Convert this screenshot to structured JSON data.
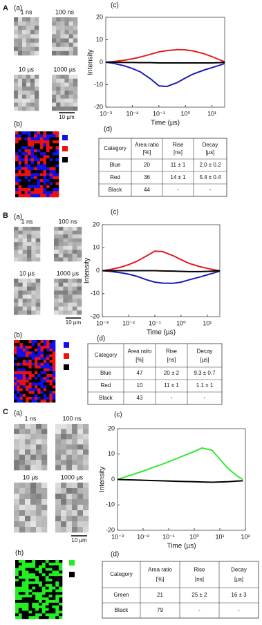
{
  "panels": [
    {
      "letter": "A",
      "images_label": "(a)",
      "frames": [
        "1 ns",
        "100 ns",
        "10 µs",
        "1000 µs"
      ],
      "scale_bar": "10 µm",
      "map_label": "(b)",
      "map_colors": [
        "#1010ee",
        "#ee1010",
        "#000000"
      ],
      "table_label": "(d)",
      "header": [
        "Category",
        "Area ratio",
        "Rise",
        "Decay"
      ],
      "units": [
        "[%]",
        "[ns]",
        "[µs]"
      ],
      "rows": [
        [
          "Blue",
          "20",
          "11 ± 1",
          "2.0 ± 0.2"
        ],
        [
          "Red",
          "36",
          "14 ± 1",
          "5.4 ± 0.4"
        ],
        [
          "Black",
          "44",
          "-",
          "-"
        ]
      ]
    },
    {
      "letter": "B",
      "images_label": "(a)",
      "frames": [
        "1 ns",
        "100 ns",
        "10 µs",
        "1000 µs"
      ],
      "scale_bar": "10 µm",
      "map_label": "(b)",
      "map_colors": [
        "#1010ee",
        "#ee1010",
        "#000000"
      ],
      "table_label": "(d)",
      "header": [
        "Category",
        "Area ratio",
        "Rise",
        "Decay"
      ],
      "units": [
        "[%]",
        "[ns]",
        "[µs]"
      ],
      "rows": [
        [
          "Blue",
          "47",
          "20 ± 2",
          "9.3 ± 0.7"
        ],
        [
          "Red",
          "10",
          "11 ± 1",
          "1.1 ± 1"
        ],
        [
          "Black",
          "43",
          "-",
          "-"
        ]
      ]
    },
    {
      "letter": "C",
      "images_label": "(a)",
      "frames": [
        "1 ns",
        "100 ns",
        "10 µs",
        "1000 µs"
      ],
      "scale_bar": "10 µm",
      "map_label": "(b)",
      "map_colors": [
        "#22ee22",
        "#000000"
      ],
      "table_label": "(d)",
      "header": [
        "Category",
        "Area ratio",
        "Rise",
        "Decay"
      ],
      "units": [
        "[%]",
        "[ns]",
        "[µs]"
      ],
      "rows": [
        [
          "Green",
          "21",
          "25 ± 2",
          "16 ± 3"
        ],
        [
          "Black",
          "79",
          "-",
          "-"
        ]
      ]
    }
  ],
  "chart_data": [
    {
      "type": "line",
      "label": "(c)",
      "xlabel": "Time (µs)",
      "ylabel": "Intensity",
      "xscale": "log",
      "xlim": [
        0.001,
        30
      ],
      "ylim": [
        -20,
        20
      ],
      "yticks": [
        -20,
        -10,
        0,
        10,
        20
      ],
      "xticks": [
        {
          "value": 0.001,
          "label": "10⁻³"
        },
        {
          "value": 0.01,
          "label": "10⁻²"
        },
        {
          "value": 0.1,
          "label": "10⁻¹"
        },
        {
          "value": 1,
          "label": "10⁰"
        },
        {
          "value": 10,
          "label": "10¹"
        }
      ],
      "x": [
        0.001,
        0.002,
        0.005,
        0.01,
        0.02,
        0.05,
        0.1,
        0.2,
        0.5,
        1,
        2,
        5,
        10,
        20,
        30
      ],
      "series": [
        {
          "color": "#e41a1c",
          "values": [
            0,
            0.3,
            0.9,
            1.5,
            2.3,
            3.6,
            4.6,
            5.2,
            5.6,
            5.5,
            5.0,
            3.8,
            2.5,
            1.0,
            0.2
          ]
        },
        {
          "color": "#1a1ab8",
          "values": [
            0,
            -0.5,
            -1.6,
            -2.8,
            -4.3,
            -7.5,
            -10.5,
            -10.8,
            -9,
            -7,
            -5.2,
            -3.5,
            -2.4,
            -1.3,
            -0.5
          ]
        },
        {
          "color": "#000000",
          "values": [
            0,
            0,
            -0.1,
            -0.1,
            -0.2,
            -0.2,
            -0.3,
            -0.3,
            -0.3,
            -0.3,
            -0.3,
            -0.3,
            -0.3,
            -0.2,
            0
          ]
        }
      ]
    },
    {
      "type": "line",
      "label": "(c)",
      "xlabel": "Time (µs)",
      "ylabel": "Intensity",
      "xscale": "log",
      "xlim": [
        0.001,
        30
      ],
      "ylim": [
        -20,
        20
      ],
      "yticks": [
        -20,
        -10,
        0,
        10,
        20
      ],
      "xticks": [
        {
          "value": 0.001,
          "label": "10⁻³"
        },
        {
          "value": 0.01,
          "label": "10⁻²"
        },
        {
          "value": 0.1,
          "label": "10⁻¹"
        },
        {
          "value": 1,
          "label": "10⁰"
        },
        {
          "value": 10,
          "label": "10¹"
        }
      ],
      "x": [
        0.001,
        0.002,
        0.005,
        0.01,
        0.02,
        0.05,
        0.1,
        0.2,
        0.5,
        1,
        2,
        5,
        10,
        20,
        30
      ],
      "series": [
        {
          "color": "#e41a1c",
          "values": [
            0,
            0.5,
            1.5,
            2.6,
            4,
            6.5,
            8.5,
            8.3,
            6.5,
            4.8,
            3.2,
            1.8,
            1,
            0.3,
            0
          ]
        },
        {
          "color": "#1a1ab8",
          "values": [
            0,
            -0.3,
            -0.9,
            -1.5,
            -2.4,
            -4,
            -5,
            -5.4,
            -5.5,
            -5,
            -4,
            -2.8,
            -1.8,
            -0.8,
            -0.2
          ]
        },
        {
          "color": "#000000",
          "values": [
            0,
            0,
            0,
            0,
            0,
            0,
            0,
            -0.1,
            -0.2,
            -0.3,
            -0.4,
            -0.4,
            -0.3,
            -0.1,
            0
          ]
        }
      ]
    },
    {
      "type": "line",
      "label": "(c)",
      "xlabel": "Time (µs)",
      "ylabel": "Intensity",
      "xscale": "log",
      "xlim": [
        0.001,
        100
      ],
      "ylim": [
        -20,
        20
      ],
      "yticks": [
        -20,
        -10,
        0,
        10,
        20
      ],
      "xticks": [
        {
          "value": 0.001,
          "label": "10⁻³"
        },
        {
          "value": 0.01,
          "label": "10⁻²"
        },
        {
          "value": 0.1,
          "label": "10⁻¹"
        },
        {
          "value": 1,
          "label": "10⁰"
        },
        {
          "value": 10,
          "label": "10¹"
        },
        {
          "value": 100,
          "label": "10²"
        }
      ],
      "x": [
        0.001,
        0.002,
        0.005,
        0.01,
        0.02,
        0.05,
        0.1,
        0.2,
        0.5,
        1,
        2,
        5,
        10,
        20,
        50,
        80
      ],
      "series": [
        {
          "color": "#33e833",
          "values": [
            0,
            1,
            2.3,
            3.3,
            4.4,
            5.8,
            7,
            8.2,
            9.8,
            11,
            12.4,
            11.5,
            8,
            4.5,
            1.2,
            0
          ]
        },
        {
          "color": "#000000",
          "values": [
            0,
            -0.1,
            -0.2,
            -0.3,
            -0.4,
            -0.5,
            -0.6,
            -0.7,
            -0.8,
            -0.9,
            -1,
            -1.1,
            -1,
            -0.9,
            -0.6,
            -0.5
          ]
        }
      ]
    }
  ]
}
